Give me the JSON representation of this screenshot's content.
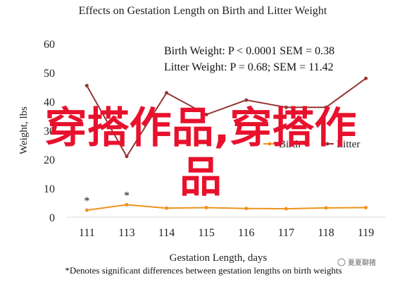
{
  "chart_data": {
    "type": "line",
    "title": "Effects on Gestation Length on Birth and Litter Weight",
    "xlabel": "Gestation Length, days",
    "ylabel": "Weight, lbs",
    "categories": [
      "111",
      "113",
      "114",
      "115",
      "116",
      "117",
      "118",
      "119"
    ],
    "ylim": [
      0,
      60
    ],
    "yticks": [
      "0",
      "10",
      "20",
      "30",
      "40",
      "50",
      "60"
    ],
    "series": [
      {
        "name": "Birth",
        "color": "#f0921e",
        "values": [
          2.4,
          4.3,
          3.1,
          3.3,
          3.0,
          2.9,
          3.2,
          3.3
        ]
      },
      {
        "name": "Litter",
        "color": "#943634",
        "values": [
          45.5,
          21.0,
          43.0,
          35.5,
          40.5,
          38.0,
          38.0,
          48.0
        ]
      }
    ],
    "stats": [
      "Birth Weight: P < 0.0001 SEM = 0.38",
      "Litter Weight: P = 0.68; SEM = 11.42"
    ],
    "significance_markers": [
      "*",
      "*"
    ],
    "footnote": "*Denotes significant differences between gestation lengths on birth weights",
    "legend_position": "right",
    "grid": false
  },
  "overlay": {
    "line1": "穿搭作品,穿搭作",
    "line2": "品",
    "color": "#e8112d"
  },
  "watermark": "夏夏聊猪"
}
